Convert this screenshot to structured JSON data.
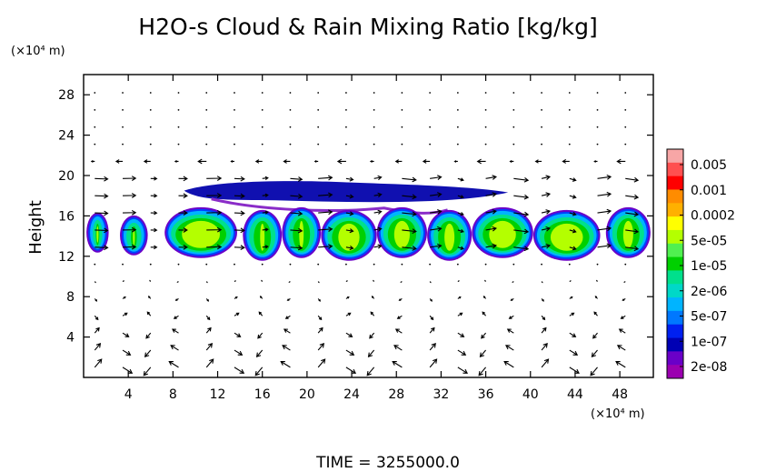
{
  "chart_data": {
    "type": "heatmap",
    "title": "H2O-s Cloud & Rain Mixing Ratio [kg/kg]",
    "ylabel": "Height",
    "y_unit": "(×10⁴ m)",
    "x_unit": "(×10⁴ m)",
    "xlim": [
      0,
      51
    ],
    "ylim": [
      0,
      30
    ],
    "x_ticks": [
      4,
      8,
      12,
      16,
      20,
      24,
      28,
      32,
      36,
      40,
      44,
      48
    ],
    "y_ticks": [
      4,
      8,
      12,
      16,
      20,
      24,
      28
    ],
    "grid": false,
    "colorbar": {
      "placement": "right",
      "labels": [
        "0.005",
        "0.001",
        "0.0002",
        "5e-05",
        "1e-05",
        "2e-06",
        "5e-07",
        "1e-07",
        "2e-08"
      ],
      "colors": [
        "#f7a6a6",
        "#ff5050",
        "#ff0000",
        "#ff8c00",
        "#ffb000",
        "#ffff00",
        "#b4ff00",
        "#50f050",
        "#00d000",
        "#00e08c",
        "#00d8c8",
        "#00b4ff",
        "#0078ff",
        "#0020f0",
        "#0000b4",
        "#6a00c8",
        "#9b00b0"
      ]
    },
    "cloud_layers": [
      {
        "name": "upper",
        "y_range": [
          17.5,
          19.5
        ],
        "x_range": [
          9,
          38
        ],
        "level": "1e-07"
      },
      {
        "name": "main",
        "y_range": [
          12,
          16.5
        ],
        "x_range": [
          0,
          51
        ],
        "level_peak": "5e-05"
      }
    ],
    "footer": "TIME = 3255000.0"
  },
  "colors": {
    "background": "#ffffff",
    "axes": "#000000"
  }
}
